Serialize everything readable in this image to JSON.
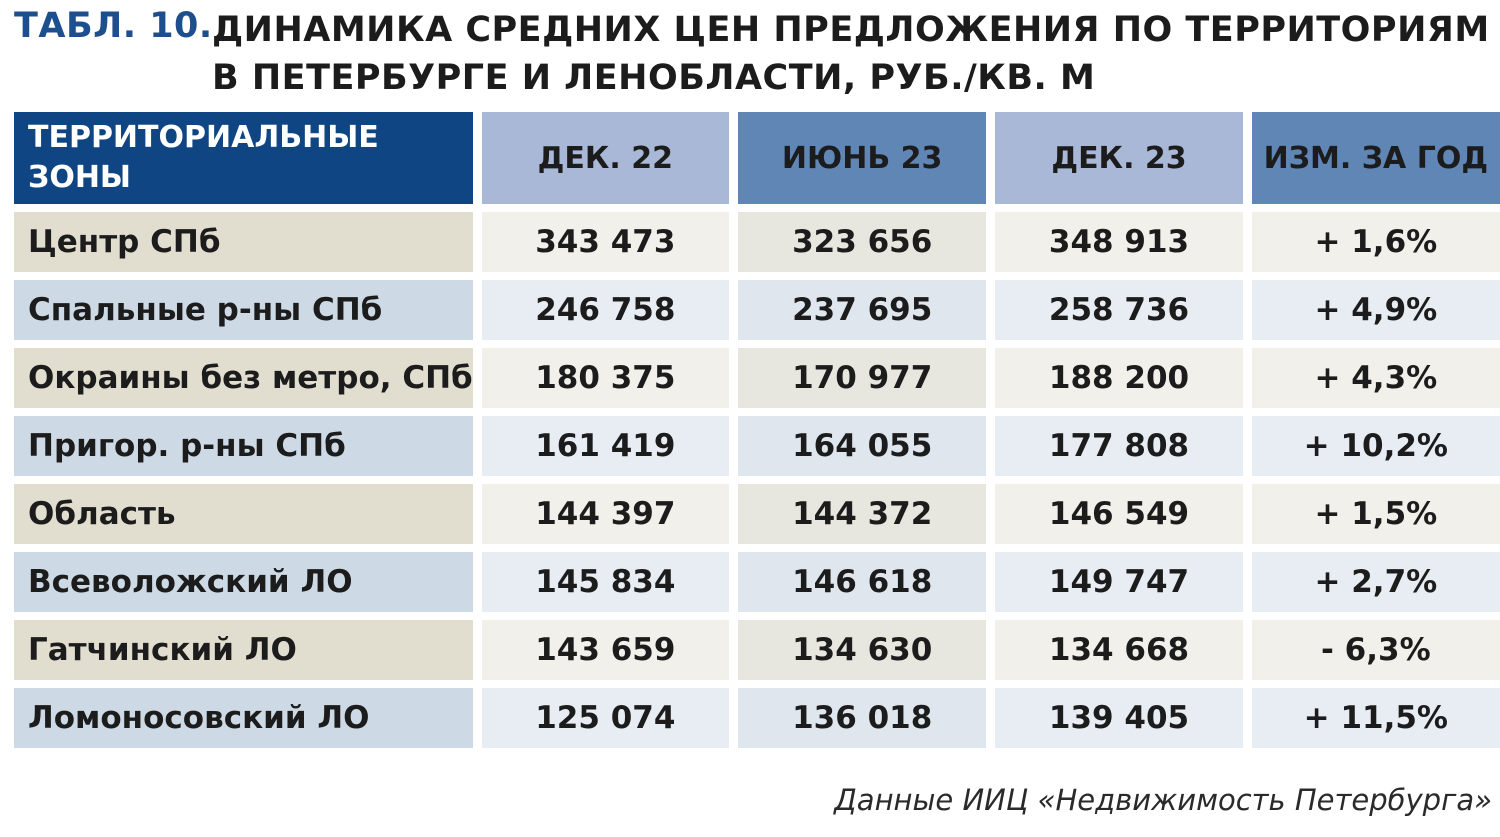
{
  "header": {
    "tab_label": "ТАБЛ. 10.",
    "title": "ДИНАМИКА СРЕДНИХ ЦЕН ПРЕДЛОЖЕНИЯ ПО ТЕРРИТОРИЯМ В ПЕТЕРБУРГЕ И ЛЕНОБЛАСТИ, РУБ./КВ. М"
  },
  "colors": {
    "accent": "#1d4f8e",
    "zone_header": "#0f4583",
    "header_light": "#a8b8d6",
    "header_mid": "#5f86b5",
    "row_beige": "#e1ded0",
    "row_blue": "#cdd9e4"
  },
  "chart_data": {
    "type": "table",
    "title": "ДИНАМИКА СРЕДНИХ ЦЕН ПРЕДЛОЖЕНИЯ ПО ТЕРРИТОРИЯМ В ПЕТЕРБУРГЕ И ЛЕНОБЛАСТИ, РУБ./КВ. М",
    "columns": [
      "ТЕРРИТОРИАЛЬНЫЕ ЗОНЫ",
      "ДЕК. 22",
      "ИЮНЬ 23",
      "ДЕК. 23",
      "ИЗМ. ЗА ГОД"
    ],
    "rows": [
      [
        "Центр СПб",
        "343 473",
        "323 656",
        "348 913",
        "+ 1,6%"
      ],
      [
        "Спальные р-ны СПб",
        "246 758",
        "237 695",
        "258 736",
        "+ 4,9%"
      ],
      [
        "Окраины без метро, СПб",
        "180 375",
        "170 977",
        "188 200",
        "+ 4,3%"
      ],
      [
        "Пригор. р-ны СПб",
        "161 419",
        "164 055",
        "177 808",
        "+ 10,2%"
      ],
      [
        "Область",
        "144 397",
        "144 372",
        "146 549",
        "+ 1,5%"
      ],
      [
        "Всеволожский ЛО",
        "145 834",
        "146 618",
        "149 747",
        "+ 2,7%"
      ],
      [
        "Гатчинский ЛО",
        "143 659",
        "134 630",
        "134 668",
        "- 6,3%"
      ],
      [
        "Ломоносовский ЛО",
        "125 074",
        "136 018",
        "139 405",
        "+ 11,5%"
      ]
    ]
  },
  "footer": {
    "source": "Данные ИИЦ «Недвижимость Петербурга»"
  }
}
